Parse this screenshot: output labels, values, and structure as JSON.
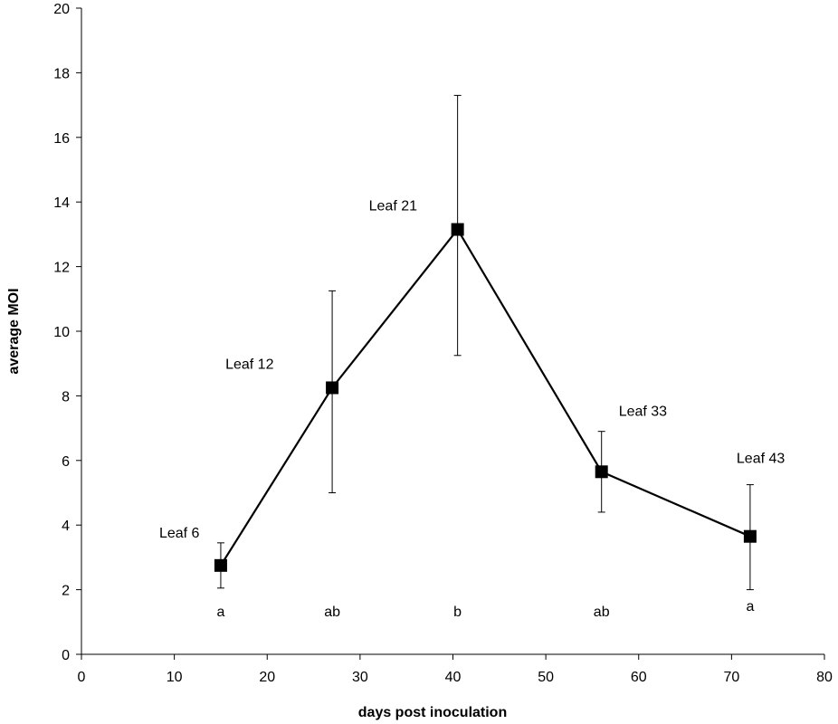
{
  "chart_data": {
    "type": "line",
    "title": "",
    "xlabel": "days post inoculation",
    "ylabel": "average MOI",
    "xlim": [
      0,
      80
    ],
    "ylim": [
      0,
      20
    ],
    "x_ticks": [
      0,
      10,
      20,
      30,
      40,
      50,
      60,
      70,
      80
    ],
    "y_ticks": [
      0,
      2,
      4,
      6,
      8,
      10,
      12,
      14,
      16,
      18,
      20
    ],
    "grid": false,
    "legend": "none",
    "marker": "square",
    "line_color": "#000000",
    "series": [
      {
        "points": [
          {
            "x": 15,
            "y": 2.75,
            "err_low": 2.05,
            "err_high": 3.45,
            "label": "Leaf 6",
            "significance": "a"
          },
          {
            "x": 27,
            "y": 8.25,
            "err_low": 5.0,
            "err_high": 11.25,
            "label": "Leaf 12",
            "significance": "ab"
          },
          {
            "x": 40.5,
            "y": 13.15,
            "err_low": 9.25,
            "err_high": 17.3,
            "label": "Leaf 21",
            "significance": "b"
          },
          {
            "x": 56,
            "y": 5.65,
            "err_low": 4.4,
            "err_high": 6.9,
            "label": "Leaf 33",
            "significance": "ab"
          },
          {
            "x": 72,
            "y": 3.65,
            "err_low": 2.0,
            "err_high": 5.25,
            "label": "Leaf 43",
            "significance": "a"
          }
        ]
      }
    ]
  }
}
